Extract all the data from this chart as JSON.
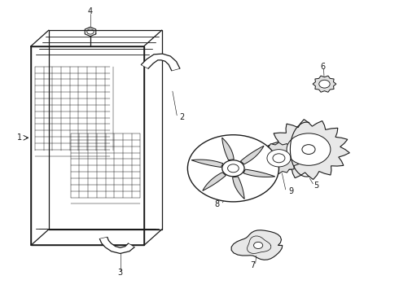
{
  "bg_color": "#ffffff",
  "line_color": "#1a1a1a",
  "lw": 0.9,
  "figsize": [
    4.9,
    3.6
  ],
  "dpi": 100,
  "labels": {
    "1": [
      0.05,
      0.47,
      7
    ],
    "2": [
      0.455,
      0.4,
      7
    ],
    "3": [
      0.3,
      0.935,
      7
    ],
    "4": [
      0.245,
      0.038,
      7
    ],
    "5": [
      0.795,
      0.635,
      7
    ],
    "6": [
      0.81,
      0.225,
      7
    ],
    "7": [
      0.635,
      0.91,
      7
    ],
    "8": [
      0.545,
      0.7,
      7
    ],
    "9": [
      0.73,
      0.655,
      7
    ]
  }
}
